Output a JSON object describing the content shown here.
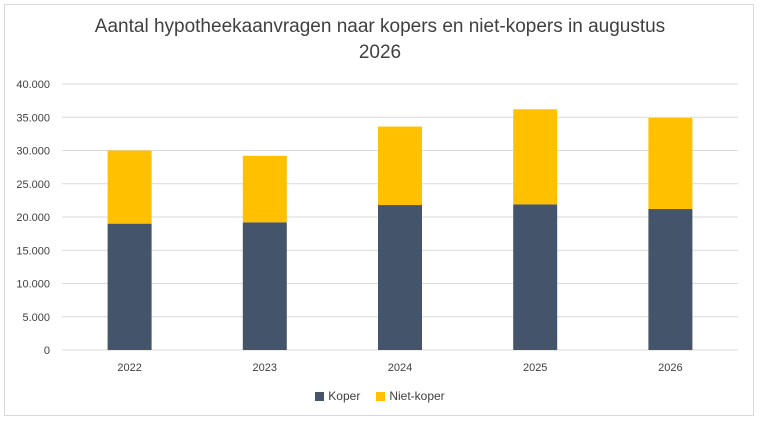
{
  "chart_data": {
    "type": "bar",
    "stacked": true,
    "title_line1": "Aantal hypotheekaanvragen naar kopers en niet-kopers in augustus",
    "title_line2": "2026",
    "categories": [
      "2022",
      "2023",
      "2024",
      "2025",
      "2026"
    ],
    "series": [
      {
        "name": "Koper",
        "color": "#44546a",
        "values": [
          19000,
          19200,
          21800,
          21900,
          21200
        ]
      },
      {
        "name": "Niet-koper",
        "color": "#ffc000",
        "values": [
          11000,
          10000,
          11800,
          14300,
          13700
        ]
      }
    ],
    "ylim": [
      0,
      40000
    ],
    "yticks": [
      0,
      5000,
      10000,
      15000,
      20000,
      25000,
      30000,
      35000,
      40000
    ],
    "ytick_labels": [
      "0",
      "5.000",
      "10.000",
      "15.000",
      "20.000",
      "25.000",
      "30.000",
      "35.000",
      "40.000"
    ],
    "grid": true,
    "legend_position": "bottom"
  }
}
